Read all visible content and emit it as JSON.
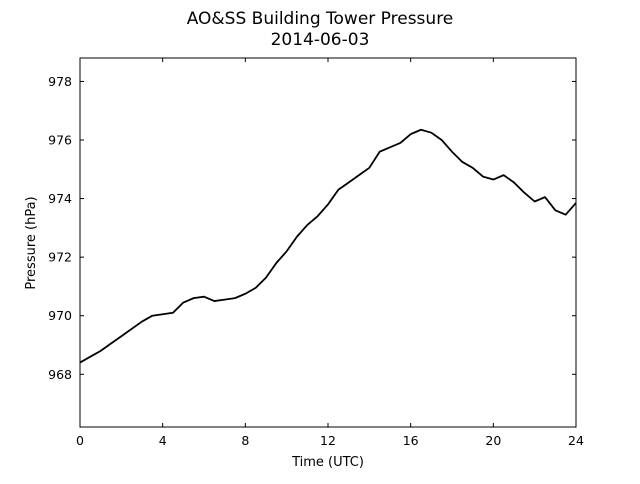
{
  "chart_data": {
    "type": "line",
    "title": "AO&SS Building Tower Pressure",
    "subtitle": "2014-06-03",
    "xlabel": "Time (UTC)",
    "ylabel": "Pressure (hPa)",
    "xlim": [
      0,
      24
    ],
    "ylim": [
      966.2,
      978.8
    ],
    "x_ticks": [
      0,
      4,
      8,
      12,
      16,
      20,
      24
    ],
    "y_ticks": [
      968,
      970,
      972,
      974,
      976,
      978
    ],
    "grid": false,
    "legend": "none",
    "line_color": "#000000",
    "series": [
      {
        "x": [
          0,
          0.5,
          1,
          1.5,
          2,
          2.5,
          3,
          3.5,
          4,
          4.5,
          5,
          5.5,
          6,
          6.5,
          7,
          7.5,
          8,
          8.5,
          9,
          9.5,
          10,
          10.5,
          11,
          11.5,
          12,
          12.5,
          13,
          13.5,
          14,
          14.5,
          15,
          15.5,
          16,
          16.5,
          17,
          17.5,
          18,
          18.5,
          19,
          19.5,
          20,
          20.5,
          21,
          21.5,
          22,
          22.5,
          23,
          23.5,
          24
        ],
        "y": [
          968.4,
          968.6,
          968.8,
          969.05,
          969.3,
          969.55,
          969.8,
          970.0,
          970.05,
          970.1,
          970.45,
          970.6,
          970.65,
          970.5,
          970.55,
          970.6,
          970.75,
          970.95,
          971.3,
          971.8,
          972.2,
          972.7,
          973.1,
          973.4,
          973.8,
          974.3,
          974.55,
          974.8,
          975.05,
          975.6,
          975.75,
          975.9,
          976.2,
          976.35,
          976.25,
          976.0,
          975.6,
          975.25,
          975.05,
          974.75,
          974.65,
          974.8,
          974.55,
          974.2,
          973.9,
          974.05,
          973.6,
          973.45,
          973.85
        ]
      }
    ]
  }
}
